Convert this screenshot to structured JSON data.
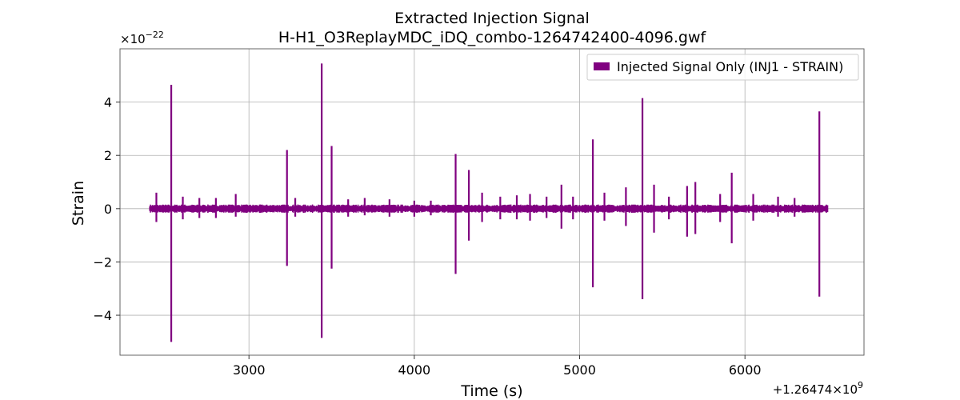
{
  "chart_data": {
    "type": "line",
    "title": "Extracted Injection Signal",
    "subtitle": "H-H1_O3ReplayMDC_iDQ_combo-1264742400-4096.gwf",
    "xlabel": "Time (s)",
    "ylabel": "Strain",
    "x_offset_label": "+1.26474×10",
    "x_offset_exp": "9",
    "y_scale_label": "×10",
    "y_scale_exp": "−22",
    "xlim": [
      2220,
      6720
    ],
    "ylim": [
      -5.5,
      6.0
    ],
    "x_ticks": [
      3000,
      4000,
      5000,
      6000
    ],
    "x_tick_labels": [
      "3000",
      "4000",
      "5000",
      "6000"
    ],
    "y_ticks": [
      -4,
      -2,
      0,
      2,
      4
    ],
    "y_tick_labels": [
      "−4",
      "−2",
      "0",
      "2",
      "4"
    ],
    "grid": true,
    "legend_position": "top-right",
    "series": [
      {
        "name": "Injected Signal Only (INJ1 - STRAIN)",
        "color": "#800080",
        "x_range": [
          2400,
          6500
        ],
        "baseline_amplitude": 0.12,
        "spikes": [
          {
            "x": 2440,
            "y_max": 0.6,
            "y_min": -0.5
          },
          {
            "x": 2530,
            "y_max": 4.65,
            "y_min": -5.0
          },
          {
            "x": 2600,
            "y_max": 0.45,
            "y_min": -0.4
          },
          {
            "x": 2700,
            "y_max": 0.4,
            "y_min": -0.35
          },
          {
            "x": 2800,
            "y_max": 0.4,
            "y_min": -0.35
          },
          {
            "x": 2920,
            "y_max": 0.55,
            "y_min": -0.3
          },
          {
            "x": 3230,
            "y_max": 2.2,
            "y_min": -2.15
          },
          {
            "x": 3280,
            "y_max": 0.4,
            "y_min": -0.3
          },
          {
            "x": 3440,
            "y_max": 5.45,
            "y_min": -4.85
          },
          {
            "x": 3500,
            "y_max": 2.35,
            "y_min": -2.25
          },
          {
            "x": 3600,
            "y_max": 0.35,
            "y_min": -0.3
          },
          {
            "x": 3700,
            "y_max": 0.4,
            "y_min": -0.25
          },
          {
            "x": 3850,
            "y_max": 0.35,
            "y_min": -0.3
          },
          {
            "x": 4000,
            "y_max": 0.3,
            "y_min": -0.3
          },
          {
            "x": 4100,
            "y_max": 0.3,
            "y_min": -0.25
          },
          {
            "x": 4250,
            "y_max": 2.05,
            "y_min": -2.45
          },
          {
            "x": 4330,
            "y_max": 1.45,
            "y_min": -1.2
          },
          {
            "x": 4410,
            "y_max": 0.6,
            "y_min": -0.5
          },
          {
            "x": 4520,
            "y_max": 0.45,
            "y_min": -0.4
          },
          {
            "x": 4620,
            "y_max": 0.5,
            "y_min": -0.4
          },
          {
            "x": 4700,
            "y_max": 0.55,
            "y_min": -0.45
          },
          {
            "x": 4800,
            "y_max": 0.45,
            "y_min": -0.35
          },
          {
            "x": 4890,
            "y_max": 0.9,
            "y_min": -0.75
          },
          {
            "x": 4960,
            "y_max": 0.45,
            "y_min": -0.4
          },
          {
            "x": 5080,
            "y_max": 2.6,
            "y_min": -2.95
          },
          {
            "x": 5150,
            "y_max": 0.6,
            "y_min": -0.45
          },
          {
            "x": 5280,
            "y_max": 0.8,
            "y_min": -0.65
          },
          {
            "x": 5380,
            "y_max": 4.15,
            "y_min": -3.4
          },
          {
            "x": 5450,
            "y_max": 0.9,
            "y_min": -0.9
          },
          {
            "x": 5540,
            "y_max": 0.45,
            "y_min": -0.4
          },
          {
            "x": 5650,
            "y_max": 0.85,
            "y_min": -1.05
          },
          {
            "x": 5700,
            "y_max": 1.0,
            "y_min": -0.95
          },
          {
            "x": 5850,
            "y_max": 0.55,
            "y_min": -0.5
          },
          {
            "x": 5920,
            "y_max": 1.35,
            "y_min": -1.3
          },
          {
            "x": 6050,
            "y_max": 0.55,
            "y_min": -0.45
          },
          {
            "x": 6200,
            "y_max": 0.45,
            "y_min": -0.3
          },
          {
            "x": 6300,
            "y_max": 0.4,
            "y_min": -0.3
          },
          {
            "x": 6450,
            "y_max": 3.65,
            "y_min": -3.3
          }
        ]
      }
    ]
  }
}
